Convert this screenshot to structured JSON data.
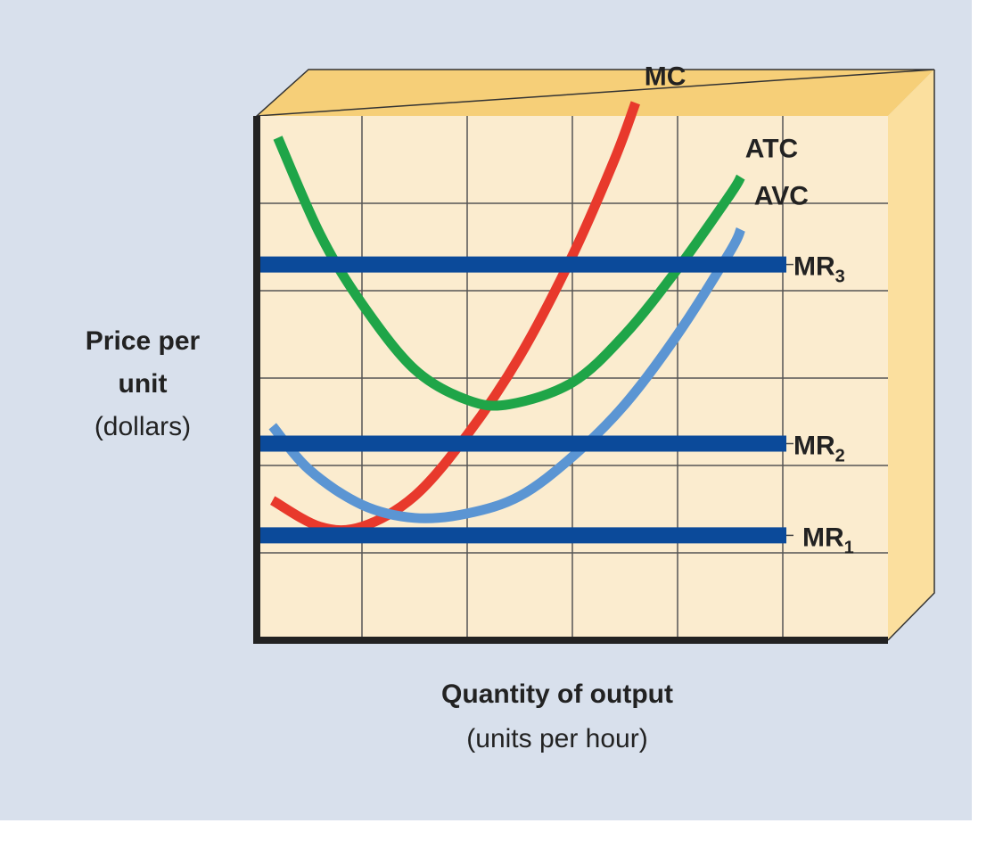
{
  "chart_data": {
    "type": "line",
    "title": "",
    "xlabel_line1": "Quantity of output",
    "xlabel_line2": "(units per hour)",
    "ylabel_line1": "Price per",
    "ylabel_line2": "unit",
    "ylabel_line3": "(dollars)",
    "grid": true,
    "legend": "none",
    "xlim": [
      0,
      6
    ],
    "ylim": [
      0,
      6
    ],
    "series": [
      {
        "name": "MC",
        "color": "#e8392c",
        "x": [
          0.15,
          0.6,
          1.0,
          1.5,
          2.0,
          2.5,
          3.0,
          3.4,
          3.6
        ],
        "y": [
          1.6,
          1.3,
          1.3,
          1.65,
          2.35,
          3.25,
          4.4,
          5.5,
          6.15
        ]
      },
      {
        "name": "ATC",
        "color": "#1fa548",
        "x": [
          0.2,
          0.6,
          1.0,
          1.5,
          2.0,
          2.4,
          3.0,
          3.5,
          4.0,
          4.5,
          4.6
        ],
        "y": [
          5.75,
          4.65,
          3.85,
          3.1,
          2.75,
          2.7,
          2.95,
          3.5,
          4.25,
          5.1,
          5.3
        ]
      },
      {
        "name": "AVC",
        "color": "#5b95d3",
        "x": [
          0.15,
          0.5,
          1.0,
          1.5,
          2.0,
          2.5,
          3.0,
          3.5,
          4.0,
          4.5,
          4.6
        ],
        "y": [
          2.45,
          1.95,
          1.55,
          1.4,
          1.45,
          1.65,
          2.1,
          2.7,
          3.5,
          4.45,
          4.7
        ]
      },
      {
        "name": "MR",
        "subscript": "3",
        "color": "#0b4a9a",
        "x": [
          0,
          5
        ],
        "y": [
          4.3,
          4.3
        ]
      },
      {
        "name": "MR",
        "subscript": "2",
        "color": "#0b4a9a",
        "x": [
          0,
          5
        ],
        "y": [
          2.25,
          2.25
        ]
      },
      {
        "name": "MR",
        "subscript": "1",
        "color": "#0b4a9a",
        "x": [
          0,
          5
        ],
        "y": [
          1.2,
          1.2
        ]
      }
    ]
  },
  "colors": {
    "background": "#d8e0ec",
    "plot_face": "#fbeccf",
    "box_top": "#f6cf78",
    "box_side": "#fbdf9e",
    "grid": "#555555",
    "axis": "#222222"
  }
}
